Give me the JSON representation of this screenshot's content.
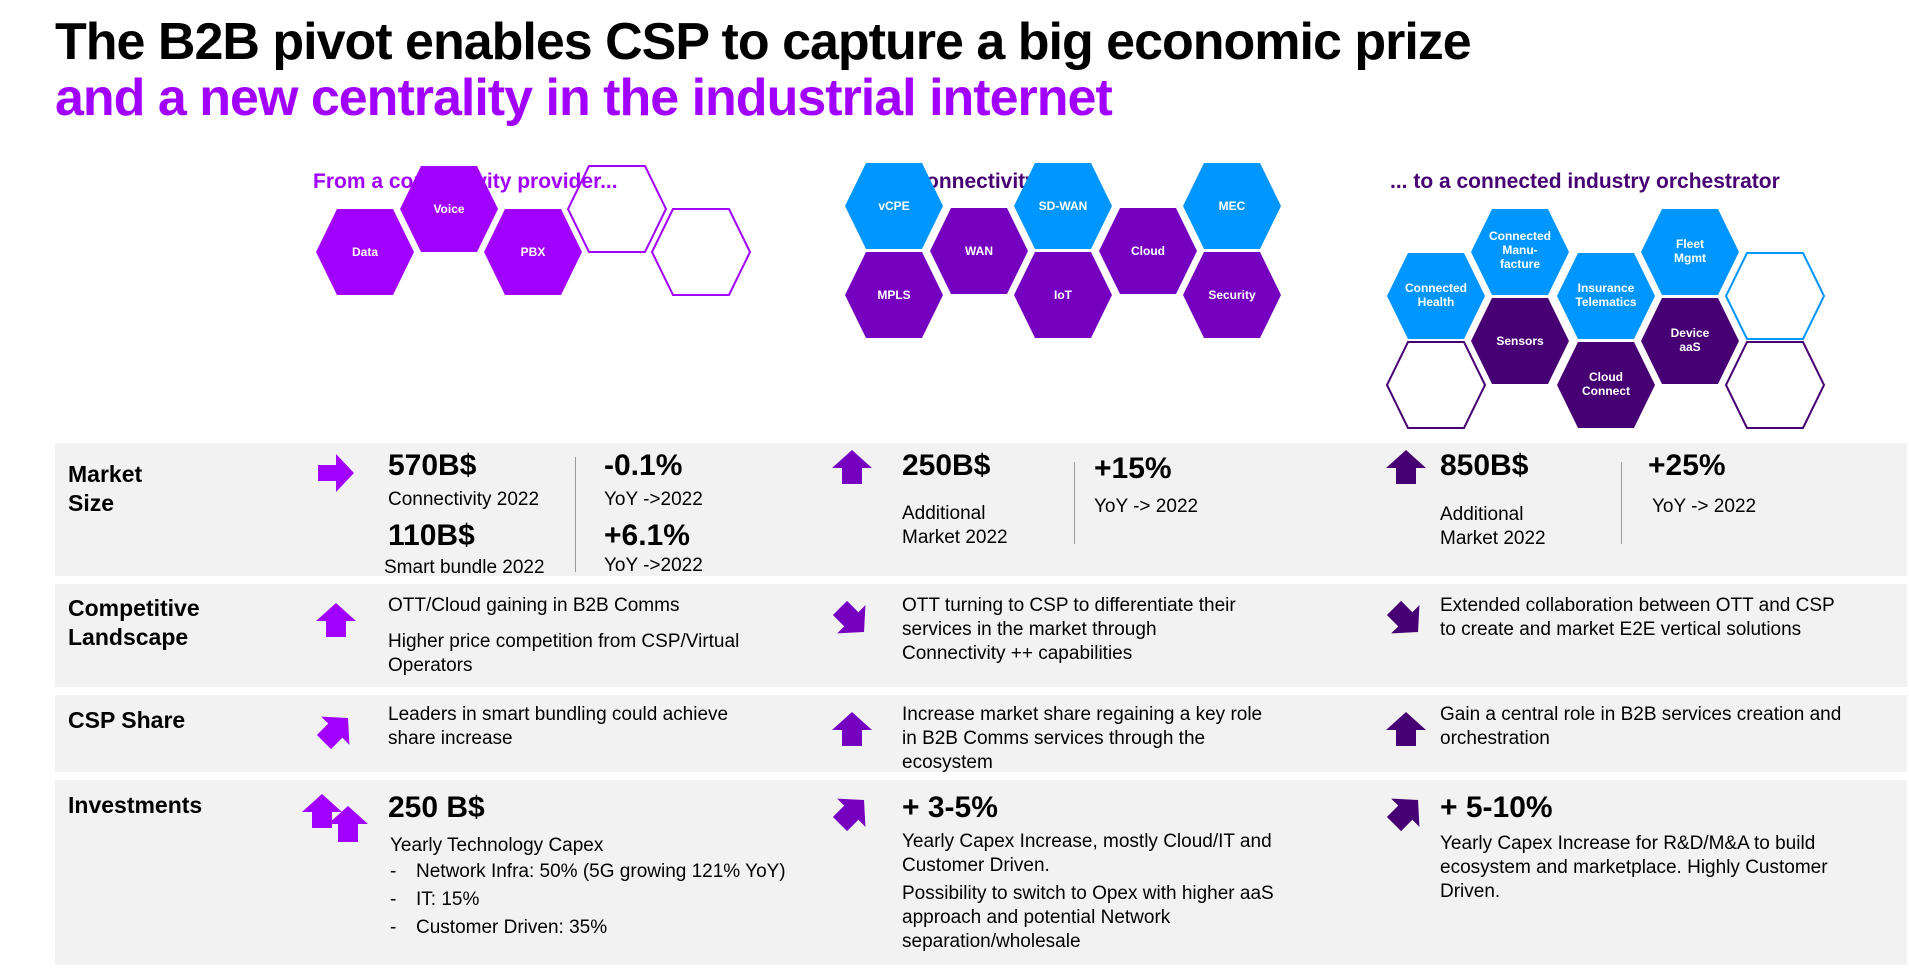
{
  "title": {
    "line1": "The B2B pivot enables CSP to capture a big economic prize",
    "line2": "and a new centrality in the industrial internet"
  },
  "columns": [
    {
      "heading": "From a connectivity provider...",
      "color": "#a100ff"
    },
    {
      "heading": ".... to Connectivity++ ...",
      "color": "#460073"
    },
    {
      "heading": "... to a connected industry orchestrator",
      "color": "#460073"
    }
  ],
  "hexes": {
    "col1": [
      "Data",
      "Voice",
      "PBX"
    ],
    "col2": [
      "vCPE",
      "SD-WAN",
      "MEC",
      "WAN",
      "Cloud",
      "MPLS",
      "IoT",
      "Security"
    ],
    "col3": [
      "Connected",
      "Health",
      "Connected",
      "Manu-",
      "facture",
      "Insurance",
      "Telematics",
      "Fleet",
      "Mgmt",
      "Sensors",
      "Device",
      "aaS",
      "Cloud",
      "Connect"
    ]
  },
  "colors": {
    "purple": "#a100ff",
    "mid_purple": "#7500c0",
    "dark_purple": "#460073",
    "blue": "#0096ff",
    "band": "#f2f2f2"
  },
  "rows": {
    "market": {
      "label1": "Market",
      "label2": "Size",
      "c1": {
        "v1": "570B$",
        "l1": "Connectivity 2022",
        "v2": "110B$",
        "l2": "Smart bundle 2022",
        "g1": "-0.1%",
        "gl1": "YoY ->2022",
        "g2": "+6.1%",
        "gl2": "YoY ->2022",
        "icon": "arrow-right-icon"
      },
      "c2": {
        "v": "250B$",
        "l1": "Additional",
        "l2": "Market 2022",
        "g": "+15%",
        "gl": "YoY -> 2022",
        "icon": "arrow-up-icon"
      },
      "c3": {
        "v": "850B$",
        "l1": "Additional",
        "l2": "Market 2022",
        "g": "+25%",
        "gl": "YoY -> 2022",
        "icon": "arrow-up-icon"
      }
    },
    "competitive": {
      "label1": "Competitive",
      "label2": "Landscape",
      "c1": {
        "t1": "OTT/Cloud gaining in B2B Comms",
        "t2": "Higher price competition from CSP/Virtual",
        "t3": "Operators"
      },
      "c2": {
        "t1": "OTT turning to CSP to differentiate their",
        "t2": "services in the market through",
        "t3": "Connectivity ++ capabilities"
      },
      "c3": {
        "t1": "Extended collaboration between OTT and CSP",
        "t2": "to create and market E2E vertical solutions"
      }
    },
    "share": {
      "label": "CSP Share",
      "c1": {
        "t1": "Leaders in smart bundling could achieve",
        "t2": "share increase"
      },
      "c2": {
        "t1": "Increase market share regaining a key role",
        "t2": "in B2B Comms services through the",
        "t3": "ecosystem"
      },
      "c3": {
        "t1": "Gain a central role in B2B services creation and",
        "t2": "orchestration"
      }
    },
    "investments": {
      "label": "Investments",
      "c1": {
        "v": "250 B$",
        "l": "Yearly Technology Capex",
        "bullets": [
          "Network Infra: 50% (5G growing 121% YoY)",
          "IT: 15%",
          "Customer Driven: 35%"
        ]
      },
      "c2": {
        "v": "+ 3-5%",
        "t1": "Yearly Capex Increase, mostly Cloud/IT and",
        "t2": "Customer Driven.",
        "t3": "Possibility to switch to Opex with higher aaS",
        "t4": "approach and potential Network",
        "t5": "separation/wholesale"
      },
      "c3": {
        "v": "+ 5-10%",
        "t1": "Yearly Capex Increase for R&D/M&A to build",
        "t2": "ecosystem and marketplace. Highly Customer",
        "t3": "Driven."
      }
    }
  }
}
